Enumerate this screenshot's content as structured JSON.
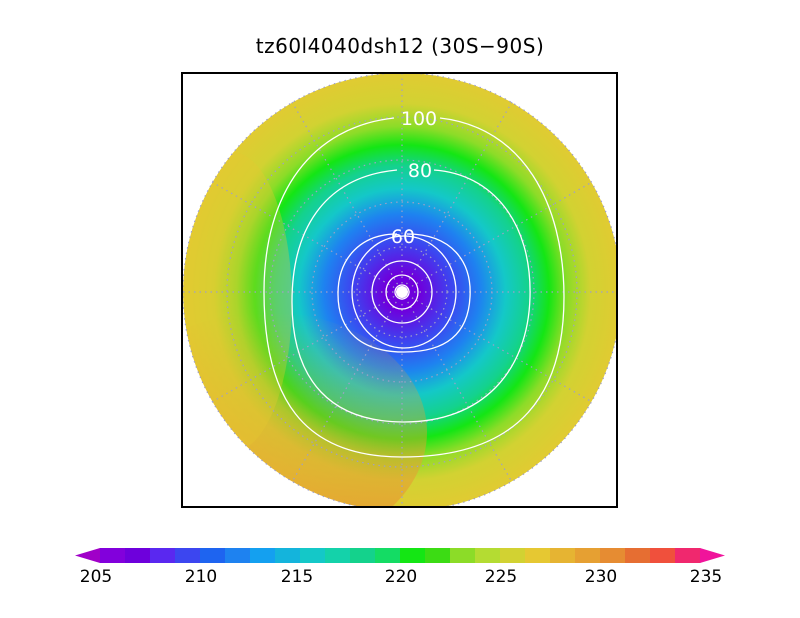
{
  "title": "tz60l4040dsh12 (30S−90S)",
  "map": {
    "projection": "south-polar-stereographic",
    "latitude_range": [
      "30S",
      "90S"
    ],
    "graticule": "dotted",
    "contour_labels": [
      "60",
      "80",
      "100"
    ]
  },
  "colorbar": {
    "min": 205,
    "max": 235,
    "ticks": [
      "205",
      "210",
      "215",
      "220",
      "225",
      "230",
      "235"
    ],
    "colors": [
      "#a000c8",
      "#8200dc",
      "#6e00dc",
      "#5a28f0",
      "#3c46f0",
      "#1e64f0",
      "#1e82f0",
      "#14a0f0",
      "#14b4dc",
      "#14c8c8",
      "#14d2aa",
      "#14d28c",
      "#14dc64",
      "#14e614",
      "#3cdc14",
      "#8cdc28",
      "#b4dc32",
      "#d2d232",
      "#e6c832",
      "#e6b432",
      "#e6a032",
      "#e68c32",
      "#e66e32",
      "#f0503c",
      "#f0286e",
      "#f0149b"
    ]
  }
}
